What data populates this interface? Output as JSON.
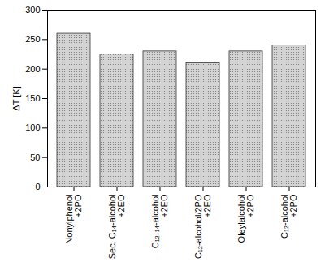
{
  "chart_data": {
    "type": "bar",
    "y_label": "ΔT [K]",
    "categories": [
      "Nonylphenol\n+2PO",
      "Sec. C₁₄-alcohol\n+2EO",
      "C₁₂₋₁₄-alcohol\n+2EO",
      "C₁₂-alcohol/2PO\n+2EO",
      "Oleylalcohol\n+2PO",
      "C₁₂-alcohol\n+2PO"
    ],
    "values": [
      260,
      225,
      230,
      210,
      230,
      240
    ],
    "color": "#d4d4d4",
    "ylim": [
      0,
      300
    ],
    "yticks": [
      0,
      50,
      100,
      150,
      200,
      250,
      300
    ],
    "grid": false
  }
}
